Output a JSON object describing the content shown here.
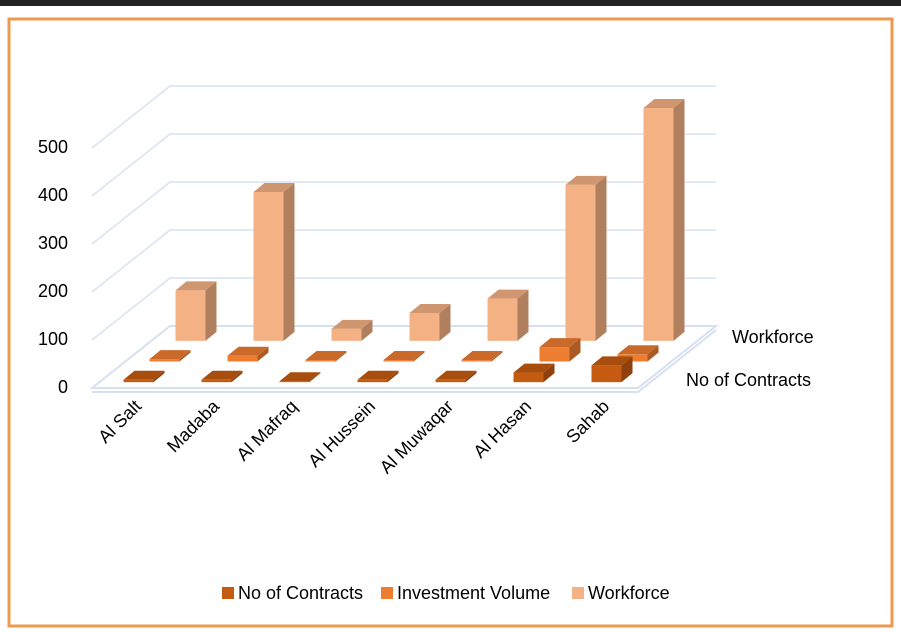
{
  "chart_data": {
    "type": "bar3d",
    "categories": [
      "Al Salt",
      "Madaba",
      "Al Mafraq",
      "Al Hussein",
      "Al Muwaqar",
      "Al Hasan",
      "Sahab"
    ],
    "series": [
      {
        "name": "No of Contracts",
        "color": "#c55a11",
        "values": [
          5,
          5,
          2,
          5,
          5,
          20,
          35
        ]
      },
      {
        "name": "Investment Volume",
        "color": "#ed7d31",
        "values": [
          5,
          12,
          3,
          3,
          3,
          30,
          15
        ]
      },
      {
        "name": "Workforce",
        "color": "#f4b183",
        "values": [
          105,
          310,
          25,
          58,
          88,
          325,
          485
        ]
      }
    ],
    "ylim": [
      0,
      500
    ],
    "yticks": [
      0,
      100,
      200,
      300,
      400,
      500
    ],
    "grid": true,
    "legend": "bottom"
  }
}
